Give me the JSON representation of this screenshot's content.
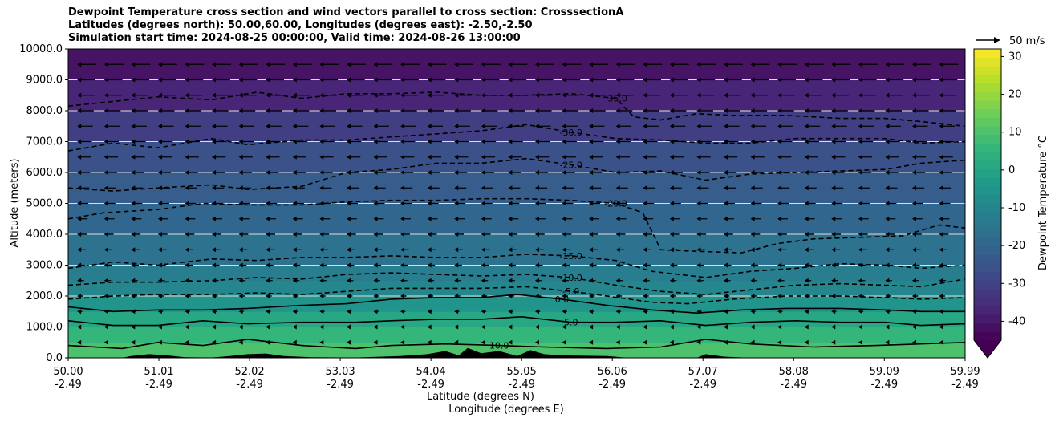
{
  "chart_data": {
    "type": "heatmap",
    "title_lines": [
      "Dewpoint Temperature cross section and wind vectors parallel to cross section: CrosssectionA",
      "Latitudes (degrees north): 50.00,60.00, Longitudes (degrees east): -2.50,-2.50",
      "Simulation start time: 2024-08-25 00:00:00, Valid time: 2024-08-26 13:00:00"
    ],
    "ylabel": "Altitude (meters)",
    "xlabel_lines": [
      "Latitude (degrees N)",
      "Longitude (degrees E)"
    ],
    "x_ticks": [
      {
        "lat": "50.00",
        "lon": "-2.49",
        "value": 50.0
      },
      {
        "lat": "51.01",
        "lon": "-2.49",
        "value": 51.01
      },
      {
        "lat": "52.02",
        "lon": "-2.49",
        "value": 52.02
      },
      {
        "lat": "53.03",
        "lon": "-2.49",
        "value": 53.03
      },
      {
        "lat": "54.04",
        "lon": "-2.49",
        "value": 54.04
      },
      {
        "lat": "55.05",
        "lon": "-2.49",
        "value": 55.05
      },
      {
        "lat": "56.06",
        "lon": "-2.49",
        "value": 56.06
      },
      {
        "lat": "57.07",
        "lon": "-2.49",
        "value": 57.07
      },
      {
        "lat": "58.08",
        "lon": "-2.49",
        "value": 58.08
      },
      {
        "lat": "59.09",
        "lon": "-2.49",
        "value": 59.09
      },
      {
        "lat": "59.99",
        "lon": "-2.49",
        "value": 59.99
      }
    ],
    "y_ticks": [
      "0.0",
      "1000.0",
      "2000.0",
      "3000.0",
      "4000.0",
      "5000.0",
      "6000.0",
      "7000.0",
      "8000.0",
      "9000.0",
      "10000.0"
    ],
    "xlim": [
      50.0,
      59.99
    ],
    "ylim": [
      0,
      10000
    ],
    "grid": "horizontal",
    "colorbar": {
      "label": "Dewpoint Temperature °C",
      "min": -45,
      "max": 32,
      "ticks": [
        "-40",
        "-30",
        "-20",
        "-10",
        "0",
        "10",
        "20",
        "30"
      ],
      "extend": "min"
    },
    "wind_key": {
      "label": "50 m/s",
      "speed": 50
    },
    "dewpoint_layers": [
      {
        "altitude": 0,
        "temp": 12
      },
      {
        "altitude": 500,
        "temp": 8
      },
      {
        "altitude": 1000,
        "temp": 4
      },
      {
        "altitude": 1500,
        "temp": -2
      },
      {
        "altitude": 2000,
        "temp": -8
      },
      {
        "altitude": 2500,
        "temp": -11
      },
      {
        "altitude": 3000,
        "temp": -14
      },
      {
        "altitude": 4000,
        "temp": -18
      },
      {
        "altitude": 5000,
        "temp": -21
      },
      {
        "altitude": 6000,
        "temp": -24
      },
      {
        "altitude": 7000,
        "temp": -28
      },
      {
        "altitude": 8000,
        "temp": -34
      },
      {
        "altitude": 9000,
        "temp": -40
      },
      {
        "altitude": 10000,
        "temp": -42
      }
    ],
    "contours": [
      {
        "label": "10.0",
        "style": "solid",
        "points": [
          [
            50.0,
            400
          ],
          [
            50.6,
            300
          ],
          [
            51.0,
            500
          ],
          [
            51.5,
            400
          ],
          [
            52.0,
            600
          ],
          [
            52.6,
            400
          ],
          [
            53.2,
            300
          ],
          [
            53.6,
            400
          ],
          [
            54.2,
            450
          ],
          [
            54.8,
            400
          ],
          [
            55.3,
            350
          ],
          [
            56.0,
            300
          ],
          [
            56.6,
            350
          ],
          [
            57.1,
            600
          ],
          [
            57.6,
            450
          ],
          [
            58.3,
            350
          ],
          [
            59.0,
            400
          ],
          [
            59.99,
            500
          ]
        ]
      },
      {
        "label": "5.0",
        "style": "solid",
        "points": [
          [
            50.0,
            1200
          ],
          [
            50.5,
            1050
          ],
          [
            51.0,
            1050
          ],
          [
            51.5,
            1200
          ],
          [
            52.0,
            1100
          ],
          [
            52.6,
            1150
          ],
          [
            53.2,
            1150
          ],
          [
            53.6,
            1200
          ],
          [
            54.1,
            1250
          ],
          [
            54.6,
            1250
          ],
          [
            55.05,
            1330
          ],
          [
            55.6,
            1150
          ],
          [
            56.1,
            1150
          ],
          [
            56.6,
            1200
          ],
          [
            57.1,
            1050
          ],
          [
            57.6,
            1150
          ],
          [
            58.1,
            1200
          ],
          [
            58.6,
            1150
          ],
          [
            59.1,
            1150
          ],
          [
            59.5,
            1050
          ],
          [
            59.99,
            1100
          ]
        ]
      },
      {
        "label": "0.0",
        "style": "solid",
        "points": [
          [
            50.0,
            1650
          ],
          [
            50.5,
            1500
          ],
          [
            51.0,
            1550
          ],
          [
            51.5,
            1550
          ],
          [
            52.0,
            1600
          ],
          [
            52.6,
            1700
          ],
          [
            53.1,
            1750
          ],
          [
            53.6,
            1900
          ],
          [
            54.1,
            1950
          ],
          [
            54.6,
            1950
          ],
          [
            55.0,
            2050
          ],
          [
            55.5,
            1900
          ],
          [
            56.0,
            1700
          ],
          [
            56.5,
            1550
          ],
          [
            57.0,
            1450
          ],
          [
            57.5,
            1550
          ],
          [
            58.0,
            1600
          ],
          [
            58.6,
            1600
          ],
          [
            59.1,
            1550
          ],
          [
            59.5,
            1500
          ],
          [
            59.99,
            1500
          ]
        ]
      },
      {
        "label": "-5.0",
        "style": "dashed",
        "points": [
          [
            50.0,
            1900
          ],
          [
            50.5,
            2000
          ],
          [
            51.0,
            2050
          ],
          [
            51.6,
            2050
          ],
          [
            52.1,
            2100
          ],
          [
            52.6,
            2050
          ],
          [
            53.1,
            2150
          ],
          [
            53.6,
            2250
          ],
          [
            54.1,
            2250
          ],
          [
            54.6,
            2250
          ],
          [
            55.1,
            2300
          ],
          [
            55.6,
            2150
          ],
          [
            56.0,
            2000
          ],
          [
            56.5,
            1800
          ],
          [
            56.9,
            1750
          ],
          [
            57.4,
            1900
          ],
          [
            58.0,
            2000
          ],
          [
            58.6,
            2000
          ],
          [
            59.1,
            1950
          ],
          [
            59.5,
            1900
          ],
          [
            59.99,
            1950
          ]
        ]
      },
      {
        "label": "-10.0",
        "style": "dashed",
        "points": [
          [
            50.0,
            2350
          ],
          [
            50.5,
            2450
          ],
          [
            51.0,
            2450
          ],
          [
            51.6,
            2500
          ],
          [
            52.1,
            2600
          ],
          [
            52.6,
            2550
          ],
          [
            53.1,
            2700
          ],
          [
            53.6,
            2750
          ],
          [
            54.1,
            2700
          ],
          [
            54.6,
            2650
          ],
          [
            55.1,
            2700
          ],
          [
            55.6,
            2600
          ],
          [
            56.1,
            2350
          ],
          [
            56.6,
            2150
          ],
          [
            57.1,
            2050
          ],
          [
            57.6,
            2200
          ],
          [
            58.1,
            2350
          ],
          [
            58.6,
            2400
          ],
          [
            59.1,
            2350
          ],
          [
            59.5,
            2300
          ],
          [
            59.99,
            2550
          ]
        ]
      },
      {
        "label": "-15.0",
        "style": "dashed",
        "points": [
          [
            50.0,
            2900
          ],
          [
            50.5,
            3100
          ],
          [
            51.0,
            3000
          ],
          [
            51.6,
            3200
          ],
          [
            52.1,
            3150
          ],
          [
            52.6,
            3250
          ],
          [
            53.1,
            3250
          ],
          [
            53.6,
            3300
          ],
          [
            54.1,
            3250
          ],
          [
            54.6,
            3250
          ],
          [
            55.1,
            3350
          ],
          [
            55.6,
            3300
          ],
          [
            56.1,
            3150
          ],
          [
            56.5,
            2800
          ],
          [
            57.1,
            2600
          ],
          [
            57.6,
            2800
          ],
          [
            58.1,
            2900
          ],
          [
            58.6,
            3050
          ],
          [
            59.1,
            3000
          ],
          [
            59.5,
            2900
          ],
          [
            59.99,
            3000
          ]
        ]
      },
      {
        "label": "-20.0",
        "style": "dashed",
        "points": [
          [
            50.0,
            4500
          ],
          [
            50.4,
            4700
          ],
          [
            51.0,
            4800
          ],
          [
            51.5,
            5000
          ],
          [
            52.0,
            4950
          ],
          [
            52.6,
            4950
          ],
          [
            53.1,
            5050
          ],
          [
            53.6,
            5100
          ],
          [
            54.1,
            5100
          ],
          [
            54.6,
            5150
          ],
          [
            55.1,
            5150
          ],
          [
            55.6,
            5100
          ],
          [
            56.1,
            5000
          ],
          [
            56.4,
            4700
          ],
          [
            56.6,
            3500
          ],
          [
            57.0,
            3450
          ],
          [
            57.5,
            3400
          ],
          [
            57.9,
            3700
          ],
          [
            58.3,
            3850
          ],
          [
            58.8,
            3900
          ],
          [
            59.3,
            3950
          ],
          [
            59.7,
            4300
          ],
          [
            59.99,
            4200
          ]
        ]
      },
      {
        "label": "-25.0",
        "style": "dashed",
        "points": [
          [
            50.0,
            5500
          ],
          [
            50.5,
            5400
          ],
          [
            51.0,
            5500
          ],
          [
            51.6,
            5600
          ],
          [
            52.0,
            5450
          ],
          [
            52.6,
            5550
          ],
          [
            53.1,
            6000
          ],
          [
            53.6,
            6100
          ],
          [
            54.1,
            6300
          ],
          [
            54.6,
            6300
          ],
          [
            55.1,
            6450
          ],
          [
            55.6,
            6250
          ],
          [
            56.1,
            6000
          ],
          [
            56.6,
            6050
          ],
          [
            57.1,
            5750
          ],
          [
            57.6,
            5950
          ],
          [
            58.1,
            6000
          ],
          [
            58.6,
            6050
          ],
          [
            59.1,
            6100
          ],
          [
            59.5,
            6300
          ],
          [
            59.99,
            6400
          ]
        ]
      },
      {
        "label": "-30.0",
        "style": "dashed",
        "points": [
          [
            50.0,
            6700
          ],
          [
            50.5,
            6950
          ],
          [
            51.0,
            6800
          ],
          [
            51.6,
            7100
          ],
          [
            52.0,
            6900
          ],
          [
            52.6,
            7050
          ],
          [
            53.1,
            7050
          ],
          [
            53.6,
            7150
          ],
          [
            54.1,
            7250
          ],
          [
            54.6,
            7350
          ],
          [
            55.1,
            7550
          ],
          [
            55.6,
            7300
          ],
          [
            56.1,
            7100
          ],
          [
            56.6,
            7050
          ],
          [
            57.1,
            6950
          ],
          [
            57.6,
            6950
          ],
          [
            58.1,
            7100
          ],
          [
            58.6,
            7100
          ],
          [
            59.1,
            7100
          ],
          [
            59.5,
            6950
          ],
          [
            59.99,
            7000
          ]
        ]
      },
      {
        "label": "-35.0",
        "style": "dashed",
        "points": [
          [
            50.0,
            8150
          ],
          [
            50.5,
            8300
          ],
          [
            51.0,
            8450
          ],
          [
            51.6,
            8350
          ],
          [
            52.1,
            8600
          ],
          [
            52.6,
            8400
          ],
          [
            53.1,
            8550
          ],
          [
            53.6,
            8550
          ],
          [
            54.1,
            8600
          ],
          [
            54.6,
            8500
          ],
          [
            55.1,
            8500
          ],
          [
            55.6,
            8550
          ],
          [
            56.1,
            8400
          ],
          [
            56.3,
            7800
          ],
          [
            56.6,
            7700
          ],
          [
            57.0,
            7900
          ],
          [
            57.4,
            7850
          ],
          [
            58.0,
            7850
          ],
          [
            58.6,
            7750
          ],
          [
            59.1,
            7750
          ],
          [
            59.5,
            7650
          ],
          [
            59.99,
            7500
          ]
        ]
      }
    ],
    "terrain": [
      [
        50.0,
        0
      ],
      [
        50.6,
        0
      ],
      [
        50.7,
        60
      ],
      [
        50.9,
        120
      ],
      [
        51.1,
        80
      ],
      [
        51.3,
        20
      ],
      [
        51.6,
        10
      ],
      [
        51.8,
        60
      ],
      [
        52.0,
        120
      ],
      [
        52.2,
        140
      ],
      [
        52.4,
        60
      ],
      [
        52.7,
        20
      ],
      [
        53.2,
        10
      ],
      [
        53.7,
        60
      ],
      [
        54.0,
        120
      ],
      [
        54.2,
        220
      ],
      [
        54.35,
        80
      ],
      [
        54.45,
        320
      ],
      [
        54.6,
        150
      ],
      [
        54.8,
        220
      ],
      [
        55.0,
        60
      ],
      [
        55.15,
        250
      ],
      [
        55.3,
        120
      ],
      [
        55.5,
        80
      ],
      [
        56.0,
        60
      ],
      [
        56.2,
        10
      ],
      [
        56.5,
        0
      ],
      [
        57.0,
        0
      ],
      [
        57.1,
        120
      ],
      [
        57.3,
        40
      ],
      [
        57.6,
        0
      ],
      [
        59.99,
        0
      ]
    ]
  }
}
